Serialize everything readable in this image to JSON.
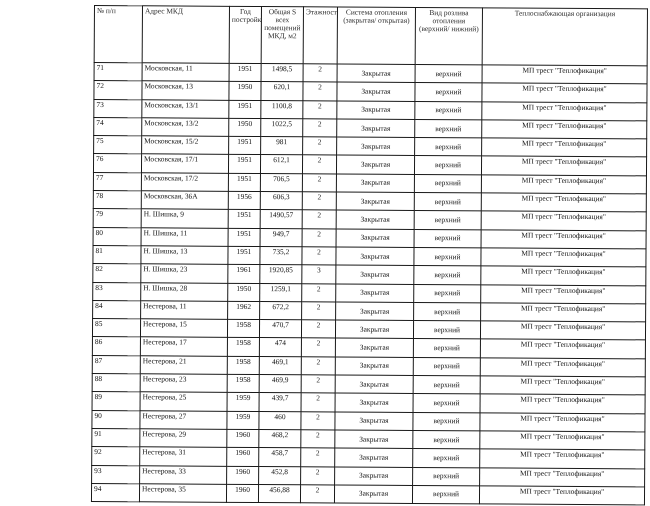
{
  "table": {
    "headers": [
      "№ п/п",
      "Адрес МКД",
      "Год постройки",
      "Общая S всех помещений МКД, м2",
      "Этажность",
      "Система отопления (закрытая/ открытая)",
      "Вид розлива отопления (верхний/ нижний)",
      "Теплоснабжающая организация"
    ],
    "rows": [
      [
        "71",
        "Московская, 11",
        "1951",
        "1498,5",
        "2",
        "Закрытая",
        "верхний",
        "МП трест \"Теплофикация\""
      ],
      [
        "72",
        "Московская, 13",
        "1950",
        "620,1",
        "2",
        "Закрытая",
        "верхний",
        "МП трест \"Теплофикация\""
      ],
      [
        "73",
        "Московская, 13/1",
        "1951",
        "1100,8",
        "2",
        "Закрытая",
        "верхний",
        "МП трест \"Теплофикация\""
      ],
      [
        "74",
        "Московская, 13/2",
        "1950",
        "1022,5",
        "2",
        "Закрытая",
        "верхний",
        "МП трест \"Теплофикация\""
      ],
      [
        "75",
        "Московская, 15/2",
        "1951",
        "981",
        "2",
        "Закрытая",
        "верхний",
        "МП трест \"Теплофикация\""
      ],
      [
        "76",
        "Московская, 17/1",
        "1951",
        "612,1",
        "2",
        "Закрытая",
        "верхний",
        "МП трест \"Теплофикация\""
      ],
      [
        "77",
        "Московская, 17/2",
        "1951",
        "706,5",
        "2",
        "Закрытая",
        "верхний",
        "МП трест \"Теплофикация\""
      ],
      [
        "78",
        "Московская, 36А",
        "1956",
        "606,3",
        "2",
        "Закрытая",
        "верхний",
        "МП трест \"Теплофикация\""
      ],
      [
        "79",
        "Н. Шишка, 9",
        "1951",
        "1490,57",
        "2",
        "Закрытая",
        "верхний",
        "МП трест \"Теплофикация\""
      ],
      [
        "80",
        "Н. Шишка, 11",
        "1951",
        "949,7",
        "2",
        "Закрытая",
        "верхний",
        "МП трест \"Теплофикация\""
      ],
      [
        "81",
        "Н. Шишка, 13",
        "1951",
        "735,2",
        "2",
        "Закрытая",
        "верхний",
        "МП трест \"Теплофикация\""
      ],
      [
        "82",
        "Н. Шишка, 23",
        "1961",
        "1920,85",
        "3",
        "Закрытая",
        "верхний",
        "МП трест \"Теплофикация\""
      ],
      [
        "83",
        "Н. Шишка, 28",
        "1950",
        "1259,1",
        "2",
        "Закрытая",
        "верхний",
        "МП трест \"Теплофикация\""
      ],
      [
        "84",
        "Нестерова, 11",
        "1962",
        "672,2",
        "2",
        "Закрытая",
        "верхний",
        "МП трест \"Теплофикация\""
      ],
      [
        "85",
        "Нестерова, 15",
        "1958",
        "470,7",
        "2",
        "Закрытая",
        "верхний",
        "МП трест \"Теплофикация\""
      ],
      [
        "86",
        "Нестерова, 17",
        "1958",
        "474",
        "2",
        "Закрытая",
        "верхний",
        "МП трест \"Теплофикация\""
      ],
      [
        "87",
        "Нестерова, 21",
        "1958",
        "469,1",
        "2",
        "Закрытая",
        "верхний",
        "МП трест \"Теплофикация\""
      ],
      [
        "88",
        "Нестерова, 23",
        "1958",
        "469,9",
        "2",
        "Закрытая",
        "верхний",
        "МП трест \"Теплофикация\""
      ],
      [
        "89",
        "Нестерова, 25",
        "1959",
        "439,7",
        "2",
        "Закрытая",
        "верхний",
        "МП трест \"Теплофикация\""
      ],
      [
        "90",
        "Нестерова, 27",
        "1959",
        "460",
        "2",
        "Закрытая",
        "верхний",
        "МП трест \"Теплофикация\""
      ],
      [
        "91",
        "Нестерова, 29",
        "1960",
        "468,2",
        "2",
        "Закрытая",
        "верхний",
        "МП трест \"Теплофикация\""
      ],
      [
        "92",
        "Нестерова, 31",
        "1960",
        "458,7",
        "2",
        "Закрытая",
        "верхний",
        "МП трест \"Теплофикация\""
      ],
      [
        "93",
        "Нестерова, 33",
        "1960",
        "452,8",
        "2",
        "Закрытая",
        "верхний",
        "МП трест \"Теплофикация\""
      ],
      [
        "94",
        "Нестерова, 35",
        "1960",
        "456,88",
        "2",
        "Закрытая",
        "верхний",
        "МП трест \"Теплофикация\""
      ]
    ]
  }
}
